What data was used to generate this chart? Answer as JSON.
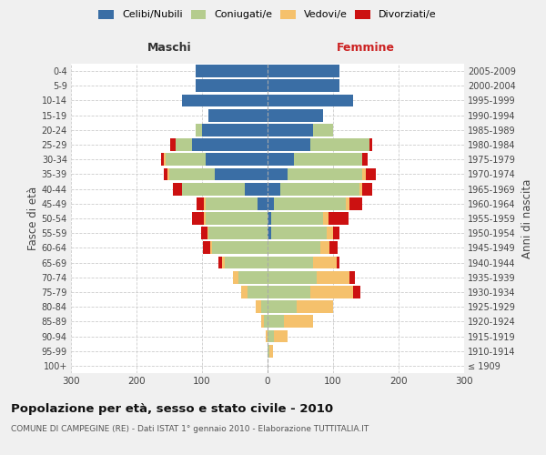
{
  "age_groups": [
    "100+",
    "95-99",
    "90-94",
    "85-89",
    "80-84",
    "75-79",
    "70-74",
    "65-69",
    "60-64",
    "55-59",
    "50-54",
    "45-49",
    "40-44",
    "35-39",
    "30-34",
    "25-29",
    "20-24",
    "15-19",
    "10-14",
    "5-9",
    "0-4"
  ],
  "birth_years": [
    "≤ 1909",
    "1910-1914",
    "1915-1919",
    "1920-1924",
    "1925-1929",
    "1930-1934",
    "1935-1939",
    "1940-1944",
    "1945-1949",
    "1950-1954",
    "1955-1959",
    "1960-1964",
    "1965-1969",
    "1970-1974",
    "1975-1979",
    "1980-1984",
    "1985-1989",
    "1990-1994",
    "1995-1999",
    "2000-2004",
    "2005-2009"
  ],
  "male": {
    "celibi": [
      0,
      0,
      0,
      0,
      0,
      0,
      0,
      0,
      0,
      0,
      0,
      15,
      35,
      80,
      95,
      115,
      100,
      90,
      130,
      110,
      110
    ],
    "coniugati": [
      0,
      0,
      0,
      5,
      10,
      30,
      45,
      65,
      85,
      90,
      95,
      80,
      95,
      70,
      60,
      25,
      10,
      0,
      0,
      0,
      0
    ],
    "vedovi": [
      0,
      0,
      3,
      5,
      8,
      10,
      8,
      5,
      3,
      2,
      2,
      2,
      0,
      3,
      3,
      0,
      0,
      0,
      0,
      0,
      0
    ],
    "divorziati": [
      0,
      0,
      0,
      0,
      0,
      0,
      0,
      5,
      10,
      10,
      18,
      12,
      15,
      5,
      5,
      8,
      0,
      0,
      0,
      0,
      0
    ]
  },
  "female": {
    "nubili": [
      0,
      0,
      0,
      0,
      0,
      0,
      0,
      0,
      0,
      5,
      5,
      10,
      20,
      30,
      40,
      65,
      70,
      85,
      130,
      110,
      110
    ],
    "coniugate": [
      0,
      3,
      10,
      25,
      45,
      65,
      75,
      70,
      80,
      85,
      80,
      110,
      120,
      115,
      105,
      90,
      30,
      0,
      0,
      0,
      0
    ],
    "vedove": [
      0,
      5,
      20,
      45,
      55,
      65,
      50,
      35,
      15,
      10,
      8,
      5,
      5,
      5,
      0,
      0,
      0,
      0,
      0,
      0,
      0
    ],
    "divorziate": [
      0,
      0,
      0,
      0,
      0,
      12,
      8,
      5,
      12,
      10,
      30,
      20,
      15,
      15,
      8,
      5,
      0,
      0,
      0,
      0,
      0
    ]
  },
  "colors": {
    "celibi_nubili": "#3a6ea5",
    "coniugati_e": "#b5cc8e",
    "vedovi_e": "#f5c16c",
    "divorziati_e": "#cc1111"
  },
  "xlim": 300,
  "title": "Popolazione per età, sesso e stato civile - 2010",
  "subtitle": "COMUNE DI CAMPEGINE (RE) - Dati ISTAT 1° gennaio 2010 - Elaborazione TUTTITALIA.IT",
  "ylabel_left": "Fasce di età",
  "ylabel_right": "Anni di nascita",
  "xlabel_left": "Maschi",
  "xlabel_right": "Femmine",
  "legend_labels": [
    "Celibi/Nubili",
    "Coniugati/e",
    "Vedovi/e",
    "Divorziati/e"
  ],
  "bg_color": "#f0f0f0",
  "plot_bg": "#ffffff"
}
